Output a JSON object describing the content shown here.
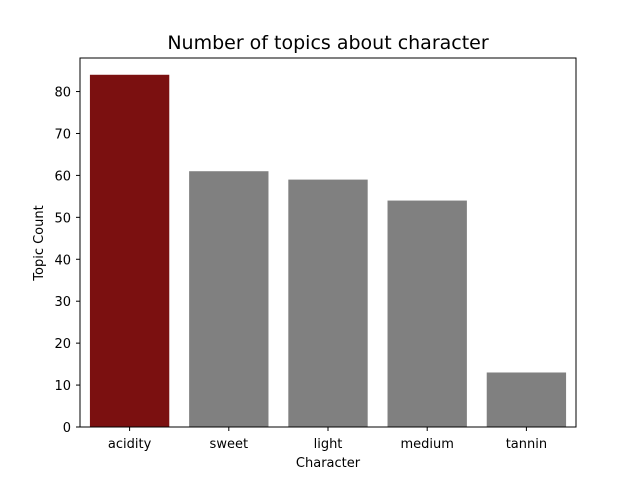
{
  "chart_data": {
    "type": "bar",
    "title": "Number of topics about character",
    "xlabel": "Character",
    "ylabel": "Topic Count",
    "categories": [
      "acidity",
      "sweet",
      "light",
      "medium",
      "tannin"
    ],
    "values": [
      84,
      61,
      59,
      54,
      13
    ],
    "colors": [
      "#7b1010",
      "#808080",
      "#808080",
      "#808080",
      "#808080"
    ],
    "ylim": [
      0,
      88
    ],
    "yticks": [
      0,
      10,
      20,
      30,
      40,
      50,
      60,
      70,
      80
    ],
    "grid": false,
    "legend": "none"
  }
}
